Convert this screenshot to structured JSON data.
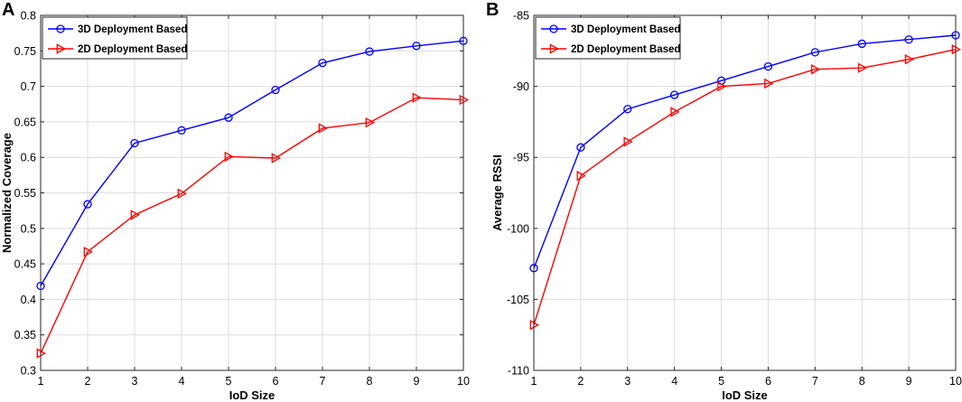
{
  "chart_data": [
    {
      "type": "line",
      "panel_label": "A",
      "title": "",
      "xlabel": "IoD Size",
      "ylabel": "Normalized Coverage",
      "x": [
        1,
        2,
        3,
        4,
        5,
        6,
        7,
        8,
        9,
        10
      ],
      "xlim": [
        1,
        10
      ],
      "ylim": [
        0.3,
        0.8
      ],
      "xticks": [
        "1",
        "2",
        "3",
        "4",
        "5",
        "6",
        "7",
        "8",
        "9",
        "10"
      ],
      "yticks": [
        "0.3",
        "0.35",
        "0.4",
        "0.45",
        "0.5",
        "0.55",
        "0.6",
        "0.65",
        "0.7",
        "0.75",
        "0.8"
      ],
      "grid": true,
      "legend_location": "top-left",
      "series": [
        {
          "name": "3D Deployment Based",
          "color": "#0000ff",
          "marker": "circle",
          "values": [
            0.419,
            0.534,
            0.62,
            0.638,
            0.656,
            0.695,
            0.733,
            0.749,
            0.757,
            0.764
          ]
        },
        {
          "name": "2D Deployment Based",
          "color": "#ff0000",
          "marker": "triangle-right",
          "values": [
            0.324,
            0.467,
            0.519,
            0.549,
            0.601,
            0.599,
            0.641,
            0.649,
            0.684,
            0.681
          ]
        }
      ]
    },
    {
      "type": "line",
      "panel_label": "B",
      "title": "",
      "xlabel": "IoD Size",
      "ylabel": "Average RSSI",
      "x": [
        1,
        2,
        3,
        4,
        5,
        6,
        7,
        8,
        9,
        10
      ],
      "xlim": [
        1,
        10
      ],
      "ylim": [
        -110,
        -85
      ],
      "xticks": [
        "1",
        "2",
        "3",
        "4",
        "5",
        "6",
        "7",
        "8",
        "9",
        "10"
      ],
      "yticks": [
        "-110",
        "-105",
        "-100",
        "-95",
        "-90",
        "-85"
      ],
      "grid": true,
      "legend_location": "top-left",
      "series": [
        {
          "name": "3D Deployment Based",
          "color": "#0000ff",
          "marker": "circle",
          "values": [
            -102.8,
            -94.3,
            -91.6,
            -90.6,
            -89.6,
            -88.6,
            -87.6,
            -87.0,
            -86.7,
            -86.4
          ]
        },
        {
          "name": "2D Deployment Based",
          "color": "#ff0000",
          "marker": "triangle-right",
          "values": [
            -106.8,
            -96.3,
            -93.9,
            -91.8,
            -90.0,
            -89.8,
            -88.8,
            -88.7,
            -88.1,
            -87.4
          ]
        }
      ]
    }
  ]
}
